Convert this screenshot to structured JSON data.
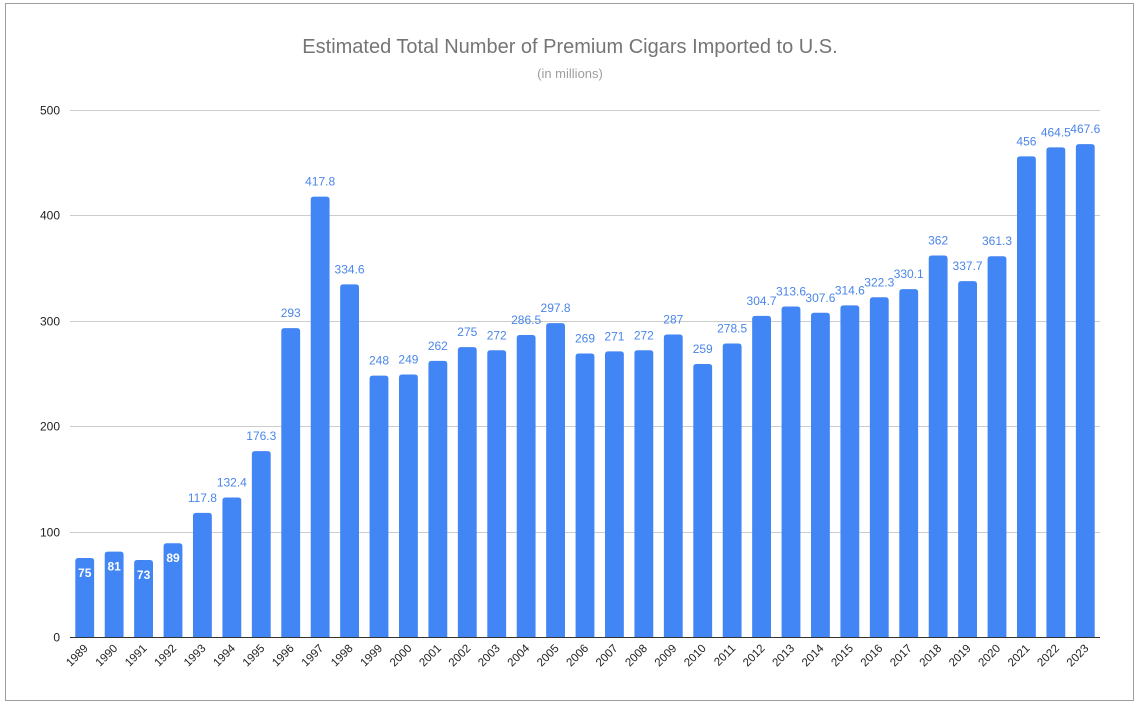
{
  "chart_data": {
    "type": "bar",
    "title": "Estimated Total Number of Premium Cigars Imported to U.S.",
    "subtitle": "(in millions)",
    "xlabel": "",
    "ylabel": "",
    "ylim": [
      0,
      500
    ],
    "yticks": [
      0,
      100,
      200,
      300,
      400,
      500
    ],
    "grid": true,
    "legend": "none",
    "bar_color": "#4285f4",
    "label_color": "#4a86e8",
    "categories": [
      "1989",
      "1990",
      "1991",
      "1992",
      "1993",
      "1994",
      "1995",
      "1996",
      "1997",
      "1998",
      "1999",
      "2000",
      "2001",
      "2002",
      "2003",
      "2004",
      "2005",
      "2006",
      "2007",
      "2008",
      "2009",
      "2010",
      "2011",
      "2012",
      "2013",
      "2014",
      "2015",
      "2016",
      "2017",
      "2018",
      "2019",
      "2020",
      "2021",
      "2022",
      "2023"
    ],
    "values": [
      75,
      81,
      73,
      89,
      117.8,
      132.4,
      176.3,
      293,
      417.8,
      334.6,
      248,
      249,
      262,
      275,
      272,
      286.5,
      297.8,
      269,
      271,
      272,
      287,
      259,
      278.5,
      304.7,
      313.6,
      307.6,
      314.6,
      322.3,
      330.1,
      362,
      337.7,
      361.3,
      456,
      464.5,
      467.6
    ],
    "data_labels": [
      "75",
      "81",
      "73",
      "89",
      "117.8",
      "132.4",
      "176.3",
      "293",
      "417.8",
      "334.6",
      "248",
      "249",
      "262",
      "275",
      "272",
      "286.5",
      "297.8",
      "269",
      "271",
      "272",
      "287",
      "259",
      "278.5",
      "304.7",
      "313.6",
      "307.6",
      "314.6",
      "322.3",
      "330.1",
      "362",
      "337.7",
      "361.3",
      "456",
      "464.5",
      "467.6"
    ]
  }
}
